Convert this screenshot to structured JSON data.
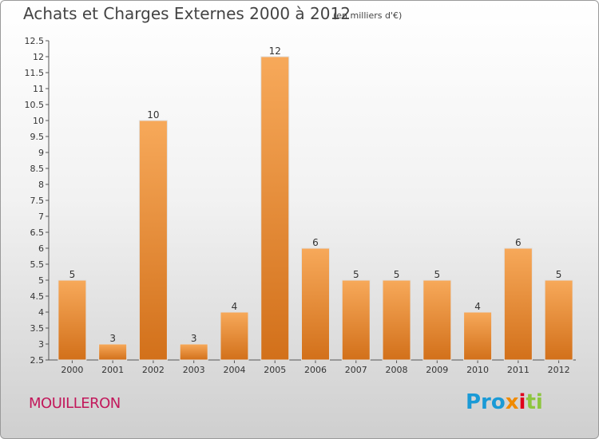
{
  "header": {
    "title": "Achats et Charges Externes 2000 à 2012",
    "subtitle": "(en milliers d'€)"
  },
  "footer": {
    "commune": "MOUILLERON",
    "logo": [
      "Pro",
      "x",
      "i",
      "ti"
    ]
  },
  "colors": {
    "bar_light": "#f7a95a",
    "bar_dark": "#d2701a",
    "commune": "#c2185b"
  },
  "chart_data": {
    "type": "bar",
    "categories": [
      "2000",
      "2001",
      "2002",
      "2003",
      "2004",
      "2005",
      "2006",
      "2007",
      "2008",
      "2009",
      "2010",
      "2011",
      "2012"
    ],
    "values": [
      5,
      3,
      10,
      3,
      4,
      12,
      6,
      5,
      5,
      5,
      4,
      6,
      5
    ],
    "ylim": [
      2.5,
      12.5
    ],
    "yticks": [
      "2.5",
      "3",
      "3.5",
      "4",
      "4.5",
      "5",
      "5.5",
      "6",
      "6.5",
      "7",
      "7.5",
      "8",
      "8.5",
      "9",
      "9.5",
      "10",
      "10.5",
      "11",
      "11.5",
      "12",
      "12.5"
    ],
    "grid": false
  }
}
